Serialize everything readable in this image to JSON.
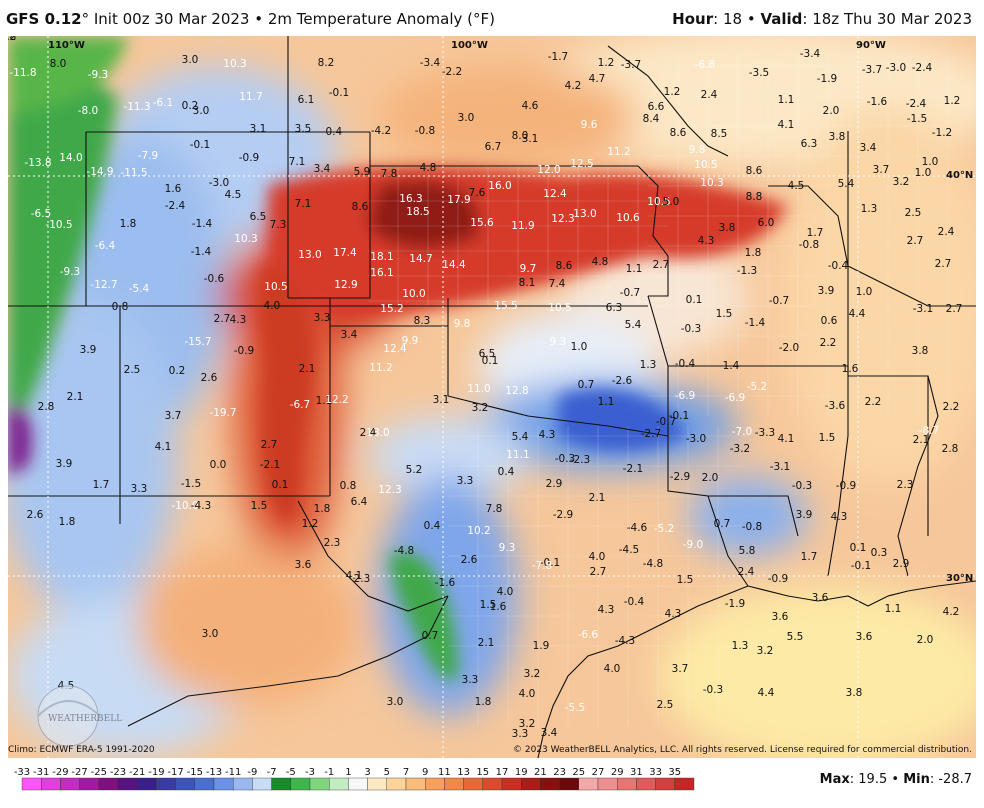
{
  "header": {
    "model": "GFS 0.12",
    "init": "Init 00z 30 Mar 2023",
    "product": "2m Temperature Anomaly (",
    "unit": "F)",
    "hour_label": "Hour",
    "hour": "18",
    "valid_label": "Valid",
    "valid": "18z Thu 30 Mar 2023"
  },
  "footer": {
    "climo": "Climo: ECMWF ERA-5 1991-2020",
    "copyright": "© 2023 WeatherBELL Analytics, LLC. All rights reserved. License required for commercial distribution.",
    "logo_text": "WEATHERBELL"
  },
  "stats": {
    "max_label": "Max",
    "max": "19.5",
    "min_label": "Min",
    "min": "-28.7"
  },
  "colors": {
    "min": "#ff55ff",
    "cold": "#2a45c8",
    "cool": "#7db4f2",
    "neutral": "#e8eef6",
    "warm": "#f2974a",
    "hot": "#c91d12",
    "max": "#8a1010",
    "green": "#2ca02c"
  },
  "colorbar": {
    "ticks": [
      "-33",
      "-31",
      "-29",
      "-27",
      "-25",
      "-23",
      "-21",
      "-19",
      "-17",
      "-15",
      "-13",
      "-11",
      "-9",
      "-7",
      "-5",
      "-3",
      "-1",
      "1",
      "3",
      "5",
      "7",
      "9",
      "11",
      "13",
      "15",
      "17",
      "19",
      "21",
      "23",
      "25",
      "27",
      "29",
      "31",
      "33",
      "35"
    ],
    "colors": [
      "#ff55ff",
      "#e23fe0",
      "#c42bc2",
      "#a419a3",
      "#7f1080",
      "#561280",
      "#3a1f8c",
      "#3a3ca6",
      "#3d55b9",
      "#4a6fd1",
      "#6b91e6",
      "#9ab8ef",
      "#c8dcf5",
      "#188c2a",
      "#3fb64d",
      "#7fd67f",
      "#c3ecc3",
      "#f7f7f7",
      "#fde9c3",
      "#fcd49a",
      "#fabc7a",
      "#f6a05c",
      "#f08848",
      "#e7693a",
      "#db4a2e",
      "#c73023",
      "#ac1b17",
      "#8a1010",
      "#6a0a0a",
      "#f3a9a9",
      "#ee8f8f",
      "#e87474",
      "#df5a5a",
      "#d24040",
      "#c52727"
    ]
  },
  "map": {
    "lon_labels": [
      "110°W",
      "100°W",
      "90°W"
    ],
    "lat_labels": [
      "40°N",
      "30°N"
    ],
    "values": [
      {
        "t": "-11.8"
      },
      {
        "t": "8.0"
      },
      {
        "t": "-9.3"
      },
      {
        "t": "3.0"
      },
      {
        "t": "10.3"
      },
      {
        "t": "8.2"
      },
      {
        "t": "-3.4"
      },
      {
        "t": "-1.7"
      },
      {
        "t": "1.2"
      },
      {
        "t": "-3.7"
      },
      {
        "t": "-6.8"
      },
      {
        "t": "-3.4"
      },
      {
        "t": "-3.5"
      },
      {
        "t": "-1.9"
      },
      {
        "t": "-3.7"
      },
      {
        "t": "-3.0"
      },
      {
        "t": "-2.4"
      },
      {
        "t": "-11.3"
      },
      {
        "t": "-6.1"
      },
      {
        "t": "0.2"
      },
      {
        "t": "11.7"
      },
      {
        "t": "6.1"
      },
      {
        "t": "-0.1"
      },
      {
        "t": "-2.2"
      },
      {
        "t": "4.2"
      },
      {
        "t": "4.7"
      },
      {
        "t": "1.2"
      },
      {
        "t": "2.4"
      },
      {
        "t": "1.1"
      },
      {
        "t": "2.0"
      },
      {
        "t": "-1.6"
      },
      {
        "t": "-2.4"
      },
      {
        "t": "1.2"
      },
      {
        "t": "-8.0"
      },
      {
        "t": "3.0"
      },
      {
        "t": "3.1"
      },
      {
        "t": "3.5"
      },
      {
        "t": "-0.4"
      },
      {
        "t": "-4.2"
      },
      {
        "t": "-0.8"
      },
      {
        "t": "3.0"
      },
      {
        "t": "4.6"
      },
      {
        "t": "6.6"
      },
      {
        "t": "8.4"
      },
      {
        "t": "4.1"
      },
      {
        "t": "-1.5"
      },
      {
        "t": "-1.2"
      },
      {
        "t": "-13.8"
      },
      {
        "t": "14.0"
      },
      {
        "t": "-7.9"
      },
      {
        "t": "-0.1"
      },
      {
        "t": "-0.9"
      },
      {
        "t": "7.1"
      },
      {
        "t": "3.4"
      },
      {
        "t": "5.9"
      },
      {
        "t": "7.8"
      },
      {
        "t": "4.8"
      },
      {
        "t": "6.7"
      },
      {
        "t": "8.0"
      },
      {
        "t": "3.1"
      },
      {
        "t": "9.6"
      },
      {
        "t": "8.6"
      },
      {
        "t": "8.5"
      },
      {
        "t": "6.3"
      },
      {
        "t": "3.8"
      },
      {
        "t": "3.4"
      },
      {
        "t": "-14.9"
      },
      {
        "t": "-11.5"
      },
      {
        "t": "1.6"
      },
      {
        "t": "-3.0"
      },
      {
        "t": "4.5"
      },
      {
        "t": "7.1"
      },
      {
        "t": "8.6"
      },
      {
        "t": "16.3"
      },
      {
        "t": "17.9"
      },
      {
        "t": "16.0"
      },
      {
        "t": "7.6"
      },
      {
        "t": "12.0"
      },
      {
        "t": "12.5"
      },
      {
        "t": "11.2"
      },
      {
        "t": "9.8"
      },
      {
        "t": "10.5"
      },
      {
        "t": "8.6"
      },
      {
        "t": "4.5"
      },
      {
        "t": "5.4"
      },
      {
        "t": "3.7"
      },
      {
        "t": "3.2"
      },
      {
        "t": "1.0"
      },
      {
        "t": "1.0"
      },
      {
        "t": "-6.5"
      },
      {
        "t": "-10.5"
      },
      {
        "t": "1.8"
      },
      {
        "t": "-2.4"
      },
      {
        "t": "-1.4"
      },
      {
        "t": "6.5"
      },
      {
        "t": "18.5"
      },
      {
        "t": "15.6"
      },
      {
        "t": "12.4"
      },
      {
        "t": "12.3"
      },
      {
        "t": "13.0"
      },
      {
        "t": "10.6"
      },
      {
        "t": "10.5"
      },
      {
        "t": "10.3"
      },
      {
        "t": "8.8"
      },
      {
        "t": "1.3"
      },
      {
        "t": "2.5"
      },
      {
        "t": "-6.4"
      },
      {
        "t": "-1.4"
      },
      {
        "t": "10.3"
      },
      {
        "t": "7.3"
      },
      {
        "t": "11.9"
      },
      {
        "t": "5.0"
      },
      {
        "t": "3.8"
      },
      {
        "t": "6.0"
      },
      {
        "t": "4.3"
      },
      {
        "t": "1.7"
      },
      {
        "t": "-0.8"
      },
      {
        "t": "2.7"
      },
      {
        "t": "2.4"
      },
      {
        "t": "-9.3"
      },
      {
        "t": "13.0"
      },
      {
        "t": "17.4"
      },
      {
        "t": "18.1"
      },
      {
        "t": "14.7"
      },
      {
        "t": "14.4"
      },
      {
        "t": "9.7"
      },
      {
        "t": "8.6"
      },
      {
        "t": "4.8"
      },
      {
        "t": "1.1"
      },
      {
        "t": "2.7"
      },
      {
        "t": "1.8"
      },
      {
        "t": "-1.3"
      },
      {
        "t": "-0.4"
      },
      {
        "t": "2.7"
      },
      {
        "t": "-12.7"
      },
      {
        "t": "-5.4"
      },
      {
        "t": "-0.6"
      },
      {
        "t": "10.5"
      },
      {
        "t": "12.9"
      },
      {
        "t": "16.1"
      },
      {
        "t": "8.1"
      },
      {
        "t": "7.4"
      },
      {
        "t": "-0.7"
      },
      {
        "t": "3.9"
      },
      {
        "t": "1.0"
      },
      {
        "t": "0.8"
      },
      {
        "t": "-4.0"
      },
      {
        "t": "10.0"
      },
      {
        "t": "15.2"
      },
      {
        "t": "15.5"
      },
      {
        "t": "10.5"
      },
      {
        "t": "6.3"
      },
      {
        "t": "0.1"
      },
      {
        "t": "-0.7"
      },
      {
        "t": "1.5"
      },
      {
        "t": "-3.1"
      },
      {
        "t": "2.7"
      },
      {
        "t": "2.7"
      },
      {
        "t": "4.3"
      },
      {
        "t": "3.3"
      },
      {
        "t": "8.3"
      },
      {
        "t": "9.8"
      },
      {
        "t": "5.4"
      },
      {
        "t": "-0.3"
      },
      {
        "t": "-1.4"
      },
      {
        "t": "0.6"
      },
      {
        "t": "4.4"
      },
      {
        "t": "3.9"
      },
      {
        "t": "-15.7"
      },
      {
        "t": "-0.9"
      },
      {
        "t": "3.4"
      },
      {
        "t": "12.4"
      },
      {
        "t": "9.9"
      },
      {
        "t": "9.3"
      },
      {
        "t": "1.0"
      },
      {
        "t": "-2.0"
      },
      {
        "t": "2.2"
      },
      {
        "t": "3.8"
      },
      {
        "t": "2.5"
      },
      {
        "t": "0.2"
      },
      {
        "t": "2.6"
      },
      {
        "t": "2.1"
      },
      {
        "t": "11.2"
      },
      {
        "t": "6.5"
      },
      {
        "t": "0.1"
      },
      {
        "t": "1.3"
      },
      {
        "t": "-0.4"
      },
      {
        "t": "1.4"
      },
      {
        "t": "1.6"
      },
      {
        "t": "2.8"
      },
      {
        "t": "2.1"
      },
      {
        "t": "-19.7"
      },
      {
        "t": "-6.7"
      },
      {
        "t": "1.1"
      },
      {
        "t": "12.2"
      },
      {
        "t": "11.0"
      },
      {
        "t": "12.8"
      },
      {
        "t": "0.7"
      },
      {
        "t": "-2.6"
      },
      {
        "t": "-6.9"
      },
      {
        "t": "-5.2"
      },
      {
        "t": "-3.6"
      },
      {
        "t": "2.2"
      },
      {
        "t": "2.2"
      },
      {
        "t": "3.7"
      },
      {
        "t": "3.1"
      },
      {
        "t": "3.2"
      },
      {
        "t": "1.1"
      },
      {
        "t": "-0.1"
      },
      {
        "t": "-6.9"
      },
      {
        "t": "-8.7"
      },
      {
        "t": "4.1"
      },
      {
        "t": "2.7"
      },
      {
        "t": "2.4"
      },
      {
        "t": "13.0"
      },
      {
        "t": "5.4"
      },
      {
        "t": "4.3"
      },
      {
        "t": "-0.7"
      },
      {
        "t": "-2.7"
      },
      {
        "t": "-3.0"
      },
      {
        "t": "-7.0"
      },
      {
        "t": "-3.3"
      },
      {
        "t": "4.1"
      },
      {
        "t": "1.5"
      },
      {
        "t": "2.1"
      },
      {
        "t": "3.9"
      },
      {
        "t": "0.0"
      },
      {
        "t": "-2.1"
      },
      {
        "t": "5.2"
      },
      {
        "t": "11.1"
      },
      {
        "t": "0.4"
      },
      {
        "t": "-0.3"
      },
      {
        "t": "-2.3"
      },
      {
        "t": "-2.1"
      },
      {
        "t": "-3.2"
      },
      {
        "t": "-3.1"
      },
      {
        "t": "2.8"
      },
      {
        "t": "1.7"
      },
      {
        "t": "3.3"
      },
      {
        "t": "-1.5"
      },
      {
        "t": "0.1"
      },
      {
        "t": "0.8"
      },
      {
        "t": "12.3"
      },
      {
        "t": "3.3"
      },
      {
        "t": "2.9"
      },
      {
        "t": "-2.9"
      },
      {
        "t": "2.0"
      },
      {
        "t": "-0.3"
      },
      {
        "t": "-0.9"
      },
      {
        "t": "2.3"
      },
      {
        "t": "2.6"
      },
      {
        "t": "1.8"
      },
      {
        "t": "-10.0"
      },
      {
        "t": "-4.3"
      },
      {
        "t": "1.5"
      },
      {
        "t": "1.8"
      },
      {
        "t": "6.4"
      },
      {
        "t": "7.8"
      },
      {
        "t": "2.1"
      },
      {
        "t": "-2.9"
      },
      {
        "t": "3.9"
      },
      {
        "t": "4.3"
      },
      {
        "t": "1.2"
      },
      {
        "t": "0.4"
      },
      {
        "t": "10.2"
      },
      {
        "t": "-4.6"
      },
      {
        "t": "-5.2"
      },
      {
        "t": "0.7"
      },
      {
        "t": "-0.8"
      },
      {
        "t": "2.3"
      },
      {
        "t": "-4.8"
      },
      {
        "t": "9.3"
      },
      {
        "t": "-9.0"
      },
      {
        "t": "-4.5"
      },
      {
        "t": "5.8"
      },
      {
        "t": "0.1"
      },
      {
        "t": "0.3"
      },
      {
        "t": "3.6"
      },
      {
        "t": "2.6"
      },
      {
        "t": "4.0"
      },
      {
        "t": "-4.8"
      },
      {
        "t": "1.7"
      },
      {
        "t": "-0.1"
      },
      {
        "t": "2.9"
      },
      {
        "t": "4.1"
      },
      {
        "t": "2.3"
      },
      {
        "t": "-1.6"
      },
      {
        "t": "-0.1"
      },
      {
        "t": "-7.8"
      },
      {
        "t": "2.7"
      },
      {
        "t": "1.5"
      },
      {
        "t": "2.4"
      },
      {
        "t": "-0.9"
      },
      {
        "t": "4.0"
      },
      {
        "t": "4.3"
      },
      {
        "t": "-1.9"
      },
      {
        "t": "3.6"
      },
      {
        "t": "1.1"
      },
      {
        "t": "4.2"
      },
      {
        "t": "1.5"
      },
      {
        "t": "1.6"
      },
      {
        "t": "-0.4"
      },
      {
        "t": "4.3"
      },
      {
        "t": "3.6"
      },
      {
        "t": "3.0"
      },
      {
        "t": "0.7"
      },
      {
        "t": "2.1"
      },
      {
        "t": "-6.6"
      },
      {
        "t": "-4.3"
      },
      {
        "t": "5.5"
      },
      {
        "t": "3.6"
      },
      {
        "t": "2.0"
      },
      {
        "t": "1.9"
      },
      {
        "t": "1.3"
      },
      {
        "t": "3.2"
      },
      {
        "t": "3.3"
      },
      {
        "t": "3.2"
      },
      {
        "t": "4.0"
      },
      {
        "t": "3.7"
      },
      {
        "t": "4.5"
      },
      {
        "t": "4.0"
      },
      {
        "t": "-0.3"
      },
      {
        "t": "4.4"
      },
      {
        "t": "3.8"
      },
      {
        "t": "3.0"
      },
      {
        "t": "1.8"
      },
      {
        "t": "-5.5"
      },
      {
        "t": "2.5"
      },
      {
        "t": "3.2"
      },
      {
        "t": "3.4"
      },
      {
        "t": "3.3"
      },
      {
        "t": "4.8"
      },
      {
        "t": "2.2"
      }
    ]
  }
}
